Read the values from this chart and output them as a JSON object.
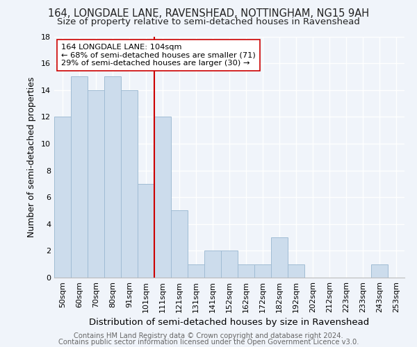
{
  "title1": "164, LONGDALE LANE, RAVENSHEAD, NOTTINGHAM, NG15 9AH",
  "title2": "Size of property relative to semi-detached houses in Ravenshead",
  "xlabel": "Distribution of semi-detached houses by size in Ravenshead",
  "ylabel": "Number of semi-detached properties",
  "footnote1": "Contains HM Land Registry data © Crown copyright and database right 2024.",
  "footnote2": "Contains public sector information licensed under the Open Government Licence v3.0.",
  "bins": [
    "50sqm",
    "60sqm",
    "70sqm",
    "80sqm",
    "91sqm",
    "101sqm",
    "111sqm",
    "121sqm",
    "131sqm",
    "141sqm",
    "152sqm",
    "162sqm",
    "172sqm",
    "182sqm",
    "192sqm",
    "202sqm",
    "212sqm",
    "223sqm",
    "233sqm",
    "243sqm",
    "253sqm"
  ],
  "counts": [
    12,
    15,
    14,
    15,
    14,
    7,
    12,
    5,
    1,
    2,
    2,
    1,
    1,
    3,
    1,
    0,
    0,
    0,
    0,
    1,
    0
  ],
  "bar_color": "#ccdcec",
  "bar_edge_color": "#a0bcd4",
  "vline_color": "#cc0000",
  "vline_bin_index": 5,
  "annotation_line1": "164 LONGDALE LANE: 104sqm",
  "annotation_line2": "← 68% of semi-detached houses are smaller (71)",
  "annotation_line3": "29% of semi-detached houses are larger (30) →",
  "annotation_box_color": "#ffffff",
  "annotation_box_edge": "#cc0000",
  "ylim": [
    0,
    18
  ],
  "yticks": [
    0,
    2,
    4,
    6,
    8,
    10,
    12,
    14,
    16,
    18
  ],
  "background_color": "#f0f4fa",
  "plot_bg_color": "#f0f4fa",
  "grid_color": "#ffffff",
  "title1_fontsize": 10.5,
  "title2_fontsize": 9.5,
  "xlabel_fontsize": 9.5,
  "ylabel_fontsize": 9,
  "tick_fontsize": 8,
  "footnote_fontsize": 7.2
}
